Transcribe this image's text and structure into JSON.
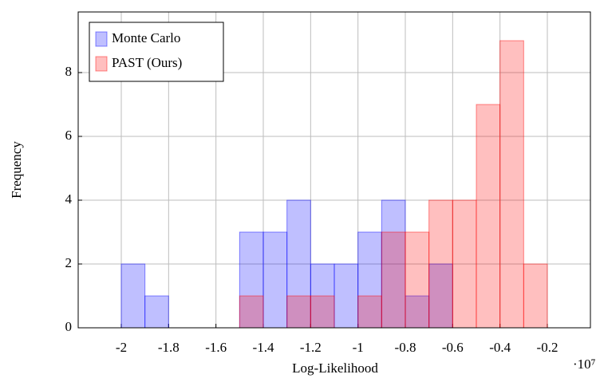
{
  "chart_data": {
    "type": "histogram",
    "x_label": "Log-Likelihood",
    "y_label": "Frequency",
    "x_scale_label": "·10⁷",
    "series": [
      {
        "name": "Monte Carlo",
        "color": "#0000ff",
        "bins": [
          -2.0,
          -1.9,
          -1.8,
          -1.7,
          -1.6,
          -1.5,
          -1.4,
          -1.3,
          -1.2,
          -1.1,
          -1.0,
          -0.9,
          -0.8,
          -0.7,
          -0.6
        ],
        "values": [
          2,
          1,
          0,
          0,
          0,
          3,
          3,
          4,
          2,
          2,
          3,
          4,
          1,
          2
        ]
      },
      {
        "name": "PAST (Ours)",
        "color": "#ff0000",
        "bins": [
          -1.8,
          -1.7,
          -1.6,
          -1.5,
          -1.4,
          -1.3,
          -1.2,
          -1.1,
          -1.0,
          -0.9,
          -0.8,
          -0.7,
          -0.6,
          -0.5,
          -0.4,
          -0.3,
          -0.2
        ],
        "values": [
          0,
          0,
          0,
          1,
          0,
          1,
          1,
          0,
          1,
          3,
          3,
          4,
          4,
          7,
          9,
          2
        ]
      }
    ],
    "xlim": [
      -2.182,
      -0.018
    ],
    "ylim": [
      0,
      9.9
    ],
    "xticks": [
      -2,
      -1.8,
      -1.6,
      -1.4,
      -1.2,
      -1,
      -0.8,
      -0.6,
      -0.4,
      -0.2
    ],
    "yticks": [
      0,
      2,
      4,
      6,
      8
    ],
    "grid": true,
    "legend": "upper left"
  }
}
